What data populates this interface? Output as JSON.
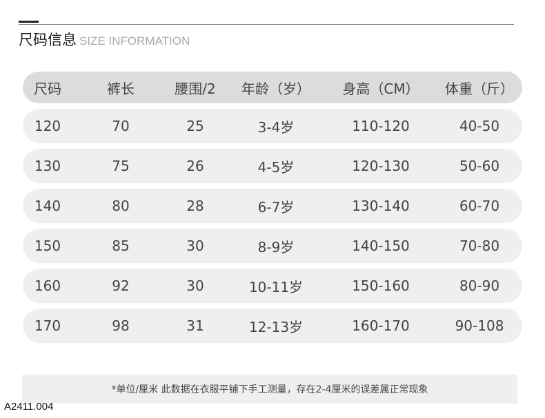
{
  "title": {
    "cn": "尺码信息",
    "en": "SIZE INFORMATION"
  },
  "table": {
    "headers": [
      "尺码",
      "裤长",
      "腰围/2",
      "年龄（岁）",
      "身高（CM）",
      "体重（斤）"
    ],
    "rows": [
      [
        "120",
        "70",
        "25",
        "3-4岁",
        "110-120",
        "40-50"
      ],
      [
        "130",
        "75",
        "26",
        "4-5岁",
        "120-130",
        "50-60"
      ],
      [
        "140",
        "80",
        "28",
        "6-7岁",
        "130-140",
        "60-70"
      ],
      [
        "150",
        "85",
        "30",
        "8-9岁",
        "140-150",
        "70-80"
      ],
      [
        "160",
        "92",
        "30",
        "10-11岁",
        "150-160",
        "80-90"
      ],
      [
        "170",
        "98",
        "31",
        "12-13岁",
        "160-170",
        "90-108"
      ]
    ]
  },
  "note": "*单位/厘米  此数据在衣服平铺下手工测量，存在2-4厘米的误差属正常现象",
  "product_code": "A2411.004"
}
